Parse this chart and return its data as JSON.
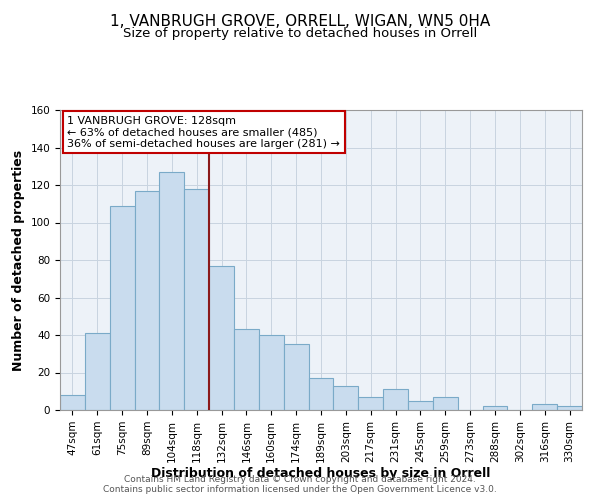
{
  "title": "1, VANBRUGH GROVE, ORRELL, WIGAN, WN5 0HA",
  "subtitle": "Size of property relative to detached houses in Orrell",
  "xlabel": "Distribution of detached houses by size in Orrell",
  "ylabel": "Number of detached properties",
  "bar_labels": [
    "47sqm",
    "61sqm",
    "75sqm",
    "89sqm",
    "104sqm",
    "118sqm",
    "132sqm",
    "146sqm",
    "160sqm",
    "174sqm",
    "189sqm",
    "203sqm",
    "217sqm",
    "231sqm",
    "245sqm",
    "259sqm",
    "273sqm",
    "288sqm",
    "302sqm",
    "316sqm",
    "330sqm"
  ],
  "bar_heights": [
    8,
    41,
    109,
    117,
    127,
    118,
    77,
    43,
    40,
    35,
    17,
    13,
    7,
    11,
    5,
    7,
    0,
    2,
    0,
    3,
    2
  ],
  "bar_color": "#c9dcee",
  "bar_edge_color": "#7aaac8",
  "vline_x": 6,
  "vline_color": "#8b1a1a",
  "annotation_title": "1 VANBRUGH GROVE: 128sqm",
  "annotation_line1": "← 63% of detached houses are smaller (485)",
  "annotation_line2": "36% of semi-detached houses are larger (281) →",
  "annotation_box_edge": "#c00000",
  "ylim": [
    0,
    160
  ],
  "yticks": [
    0,
    20,
    40,
    60,
    80,
    100,
    120,
    140,
    160
  ],
  "footer1": "Contains HM Land Registry data © Crown copyright and database right 2024.",
  "footer2": "Contains public sector information licensed under the Open Government Licence v3.0.",
  "bg_color": "#edf2f8",
  "grid_color": "#c8d4e0",
  "title_fontsize": 11,
  "subtitle_fontsize": 9.5,
  "axis_label_fontsize": 9,
  "tick_fontsize": 7.5,
  "footer_fontsize": 6.5
}
